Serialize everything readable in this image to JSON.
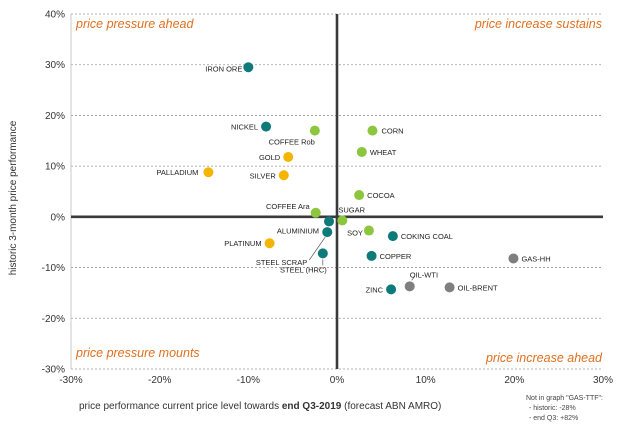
{
  "chart_data": {
    "type": "scatter",
    "xlabel_parts": [
      "price performance current price level towards ",
      "end Q3-2019",
      " (forecast ABN AMRO)"
    ],
    "ylabel": "historic 3-month price performance",
    "xlim": [
      -0.3,
      0.3
    ],
    "ylim": [
      -0.3,
      0.4
    ],
    "x_ticks": [
      "-30%",
      "-20%",
      "-10%",
      "0%",
      "10%",
      "20%",
      "30%"
    ],
    "y_ticks": [
      "-30%",
      "-20%",
      "-10%",
      "0%",
      "10%",
      "20%",
      "30%",
      "40%"
    ],
    "grid": "horizontal-dashed",
    "quadrant_labels": {
      "top_left": "price pressure ahead",
      "top_right": "price increase sustains",
      "bottom_left": "price pressure mounts",
      "bottom_right": "price increase ahead"
    },
    "note_lines": [
      "Not in graph \"GAS-TTF\":",
      "- historic: -28%",
      "- end Q3: +82%"
    ],
    "colors": {
      "teal": "#0e7a7a",
      "gold": "#f5b400",
      "green": "#8cc63f",
      "grey": "#7f7f7f",
      "quadrant_text": "#e07020"
    },
    "points": [
      {
        "name": "IRON ORE",
        "x": -0.1,
        "y": 0.295,
        "color": "teal"
      },
      {
        "name": "NICKEL",
        "x": -0.08,
        "y": 0.178,
        "color": "teal"
      },
      {
        "name": "COFFEE Rob",
        "x": -0.025,
        "y": 0.17,
        "color": "green"
      },
      {
        "name": "CORN",
        "x": 0.04,
        "y": 0.17,
        "color": "green"
      },
      {
        "name": "WHEAT",
        "x": 0.028,
        "y": 0.128,
        "color": "green"
      },
      {
        "name": "GOLD",
        "x": -0.055,
        "y": 0.118,
        "color": "gold"
      },
      {
        "name": "PALLADIUM",
        "x": -0.145,
        "y": 0.088,
        "color": "gold"
      },
      {
        "name": "SILVER",
        "x": -0.06,
        "y": 0.082,
        "color": "gold"
      },
      {
        "name": "COCOA",
        "x": 0.025,
        "y": 0.043,
        "color": "green"
      },
      {
        "name": "COFFEE Ara",
        "x": -0.024,
        "y": 0.008,
        "color": "green"
      },
      {
        "name": "SUGAR",
        "x": 0.006,
        "y": -0.007,
        "color": "green"
      },
      {
        "name": "ALUMINIUM",
        "x": -0.009,
        "y": -0.009,
        "color": "teal"
      },
      {
        "name": "SOY",
        "x": 0.036,
        "y": -0.027,
        "color": "green"
      },
      {
        "name": "COKING COAL",
        "x": 0.063,
        "y": -0.038,
        "color": "teal"
      },
      {
        "name": "PLATINUM",
        "x": -0.076,
        "y": -0.052,
        "color": "gold"
      },
      {
        "name": "STEEL SCRAP",
        "x": -0.011,
        "y": -0.03,
        "color": "teal"
      },
      {
        "name": "STEEL (HRC)",
        "x": -0.016,
        "y": -0.072,
        "color": "teal"
      },
      {
        "name": "COPPER",
        "x": 0.039,
        "y": -0.077,
        "color": "teal"
      },
      {
        "name": "GAS-HH",
        "x": 0.199,
        "y": -0.082,
        "color": "grey"
      },
      {
        "name": "OIL-WTI",
        "x": 0.082,
        "y": -0.137,
        "color": "grey"
      },
      {
        "name": "ZINC",
        "x": 0.061,
        "y": -0.143,
        "color": "teal"
      },
      {
        "name": "OIL-BRENT",
        "x": 0.127,
        "y": -0.139,
        "color": "grey"
      }
    ]
  }
}
